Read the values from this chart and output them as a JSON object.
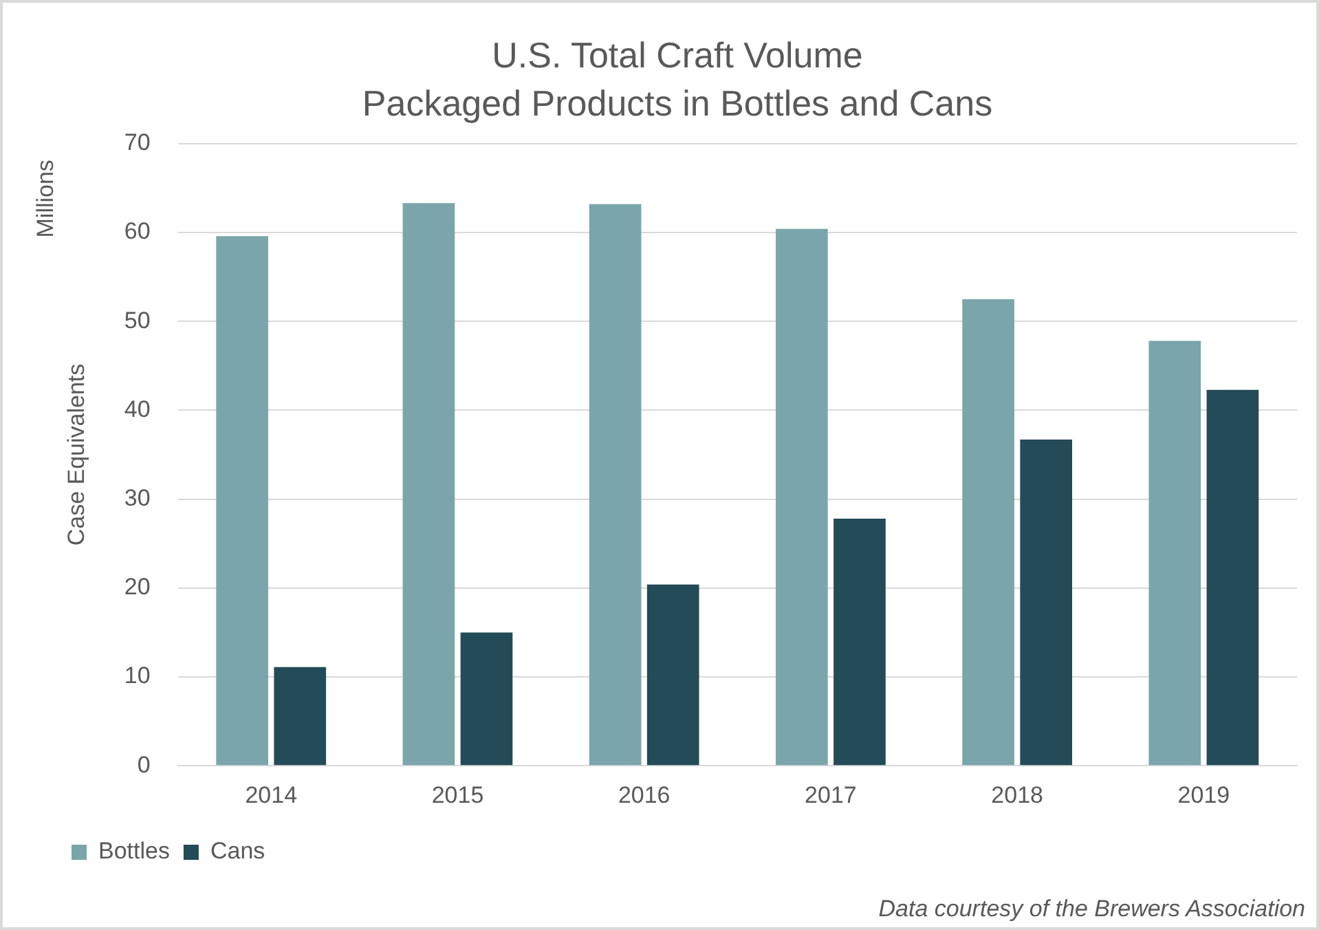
{
  "chart_data": {
    "type": "bar",
    "title": "U.S. Total Craft Volume",
    "subtitle": "Packaged Products in Bottles and Cans",
    "ylabel": "Case Equivalents",
    "categories": [
      "2014",
      "2015",
      "2016",
      "2017",
      "2018",
      "2019"
    ],
    "series": [
      {
        "name": "Bottles",
        "color": "#7aa5ab",
        "values": [
          59.6,
          63.3,
          63.2,
          60.4,
          52.5,
          47.8
        ]
      },
      {
        "name": "Cans",
        "color": "#234b58",
        "values": [
          11.1,
          15.0,
          20.4,
          27.8,
          36.7,
          42.3
        ]
      }
    ],
    "ylim": [
      0,
      70
    ],
    "yticks": [
      0,
      10,
      20,
      30,
      40,
      50,
      60,
      70
    ],
    "grid": "y",
    "legend": "bottom left",
    "annotations": [
      "Millions",
      "Data courtesy of the Brewers Association"
    ]
  }
}
